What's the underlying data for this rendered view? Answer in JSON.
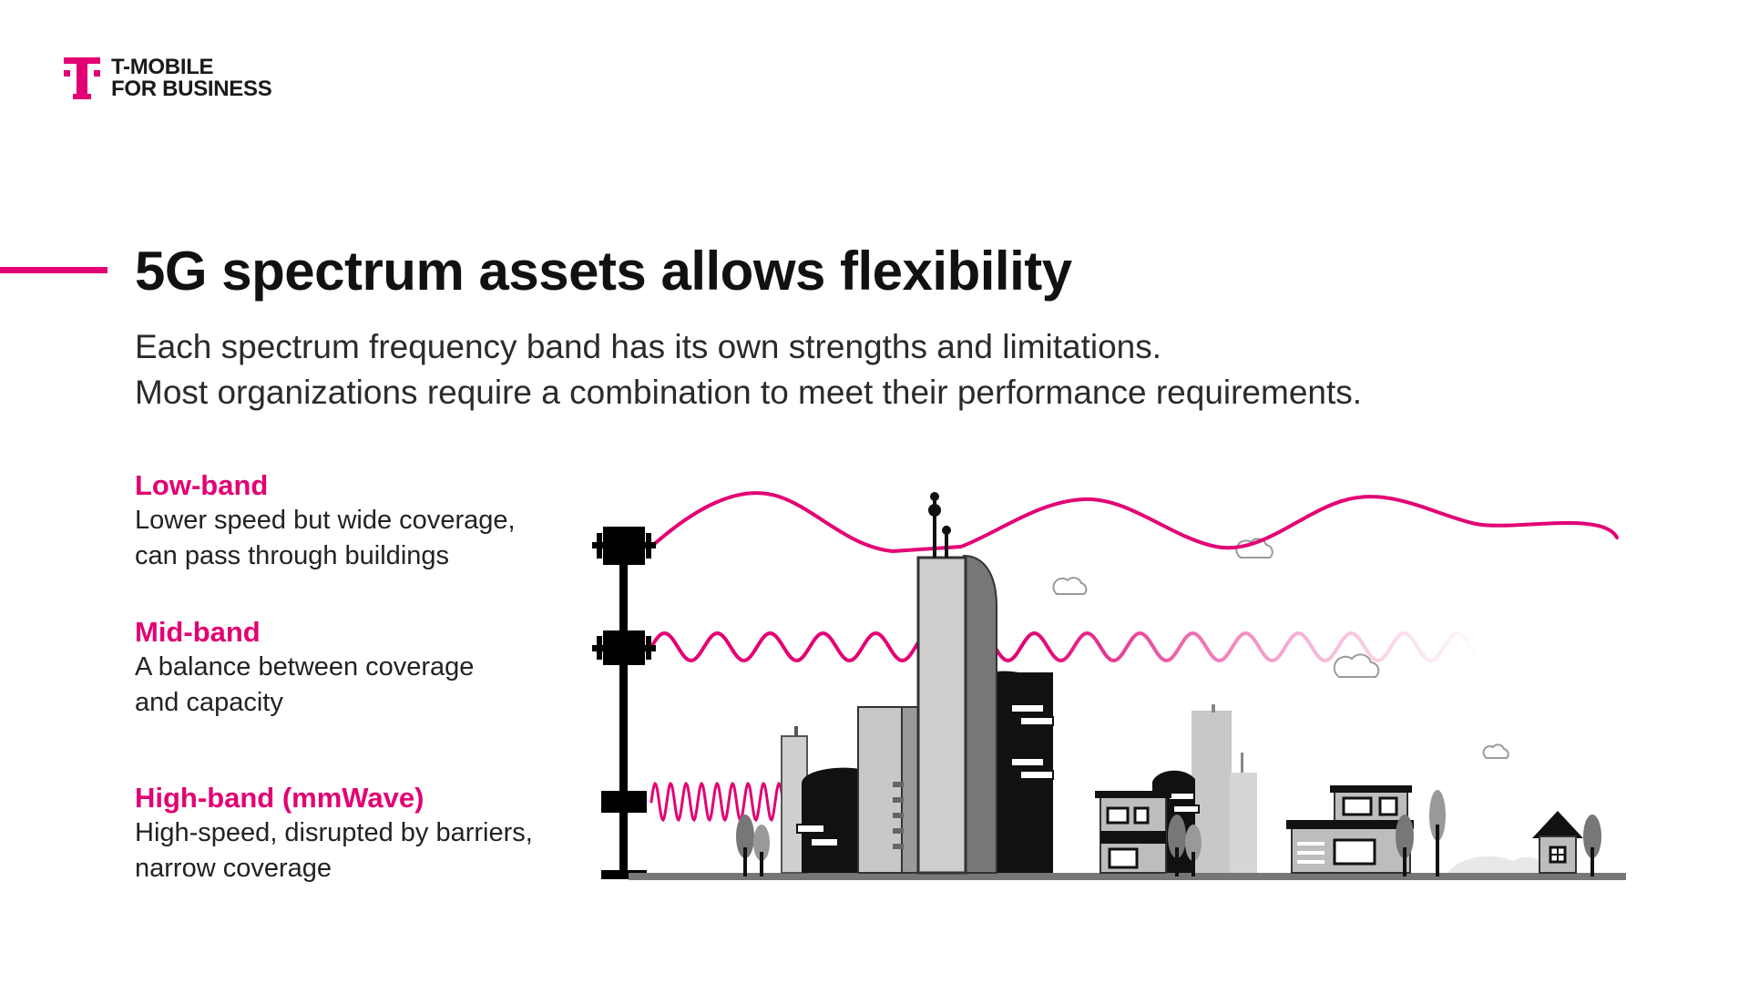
{
  "brand": {
    "name_line1": "T-MOBILE",
    "name_line2": "FOR BUSINESS",
    "color": "#e20074"
  },
  "title": "5G spectrum assets allows flexibility",
  "subtitle": {
    "line1": "Each spectrum frequency band has its own strengths and limitations.",
    "line2": "Most organizations require a combination to meet their performance requirements."
  },
  "bands": [
    {
      "name": "Low-band",
      "line1": "Lower speed but wide coverage,",
      "line2": "can pass through buildings"
    },
    {
      "name": "Mid-band",
      "line1": "A balance between coverage",
      "line2": "and capacity"
    },
    {
      "name": "High-band (mmWave)",
      "line1": "High-speed, disrupted by barriers,",
      "line2": "narrow coverage"
    }
  ],
  "illustration": {
    "icons": [
      "cell-tower-icon",
      "skyscraper-icon",
      "house-icon",
      "tree-icon",
      "cloud-icon"
    ],
    "wave_color": "#e20074"
  }
}
